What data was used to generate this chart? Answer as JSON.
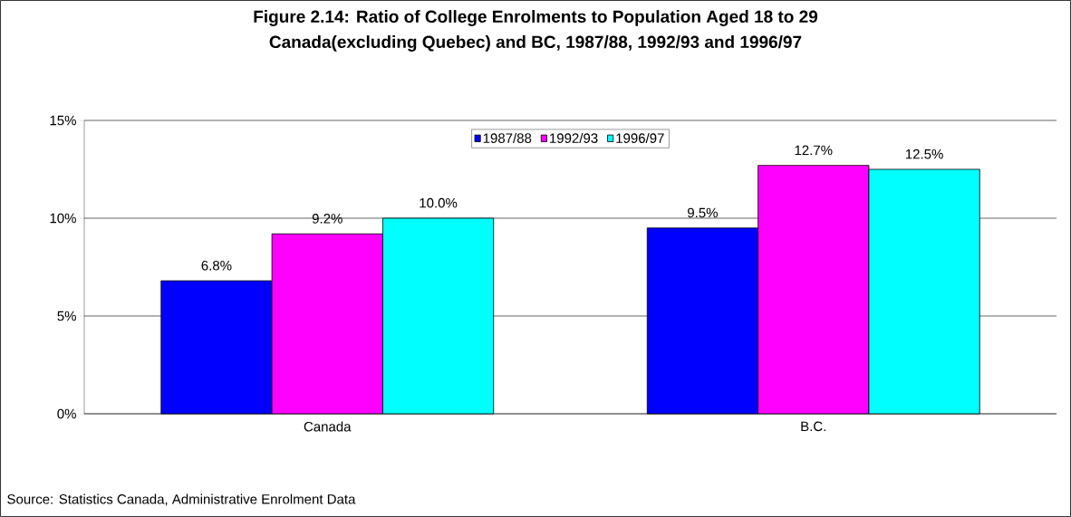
{
  "chart_data": {
    "type": "bar",
    "title": "Figure 2.14:  Ratio of College Enrolments to Population Aged 18 to 29",
    "subtitle": "Canada(excluding Quebec) and BC, 1987/88, 1992/93 and 1996/97",
    "categories": [
      "Canada",
      "B.C."
    ],
    "series": [
      {
        "name": "1987/88",
        "color": "#0000ff",
        "values": [
          6.8,
          9.5
        ],
        "value_labels": [
          "6.8%",
          "9.5%"
        ]
      },
      {
        "name": "1992/93",
        "color": "#ff00ff",
        "values": [
          9.2,
          12.7
        ],
        "value_labels": [
          "9.2%",
          "12.7%"
        ]
      },
      {
        "name": "1996/97",
        "color": "#00ffff",
        "values": [
          10.0,
          12.5
        ],
        "value_labels": [
          "10.0%",
          "12.5%"
        ]
      }
    ],
    "ylim": [
      0,
      15
    ],
    "yticks": [
      {
        "value": 0,
        "label": "0%"
      },
      {
        "value": 5,
        "label": "5%"
      },
      {
        "value": 10,
        "label": "10%"
      },
      {
        "value": 15,
        "label": "15%"
      }
    ],
    "grid": "y",
    "legend": "top",
    "annotations": [
      "Source:  Statistics Canada, Administrative Enrolment Data"
    ]
  }
}
